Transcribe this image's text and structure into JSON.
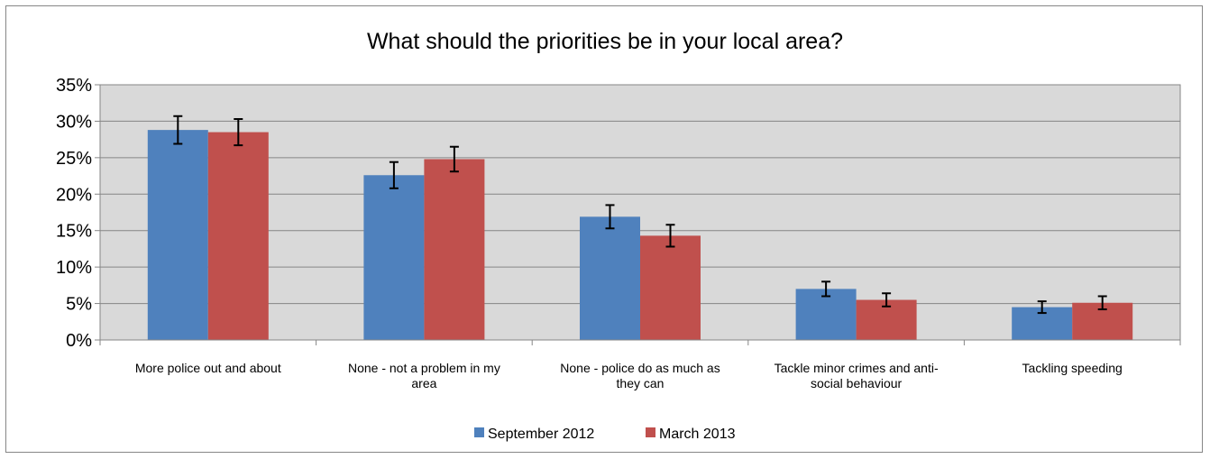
{
  "chart_data": {
    "type": "bar",
    "title": "What should the priorities be in your local area?",
    "xlabel": "",
    "ylabel": "",
    "ylim": [
      0,
      35
    ],
    "ytick_step": 5,
    "ytick_suffix": "%",
    "grid": true,
    "legend_position": "bottom",
    "categories": [
      [
        "More police out and about"
      ],
      [
        "None - not a problem in my",
        "area"
      ],
      [
        "None - police do as much as",
        "they can"
      ],
      [
        "Tackle minor crimes and anti-",
        "social behaviour"
      ],
      [
        "Tackling speeding"
      ]
    ],
    "series": [
      {
        "name": "September 2012",
        "color": "#4F81BD",
        "values": [
          28.8,
          22.6,
          16.9,
          7.0,
          4.5
        ],
        "error": [
          1.9,
          1.8,
          1.6,
          1.0,
          0.8
        ]
      },
      {
        "name": "March 2013",
        "color": "#C0504D",
        "values": [
          28.5,
          24.8,
          14.3,
          5.5,
          5.1
        ],
        "error": [
          1.8,
          1.7,
          1.5,
          0.9,
          0.9
        ]
      }
    ]
  }
}
